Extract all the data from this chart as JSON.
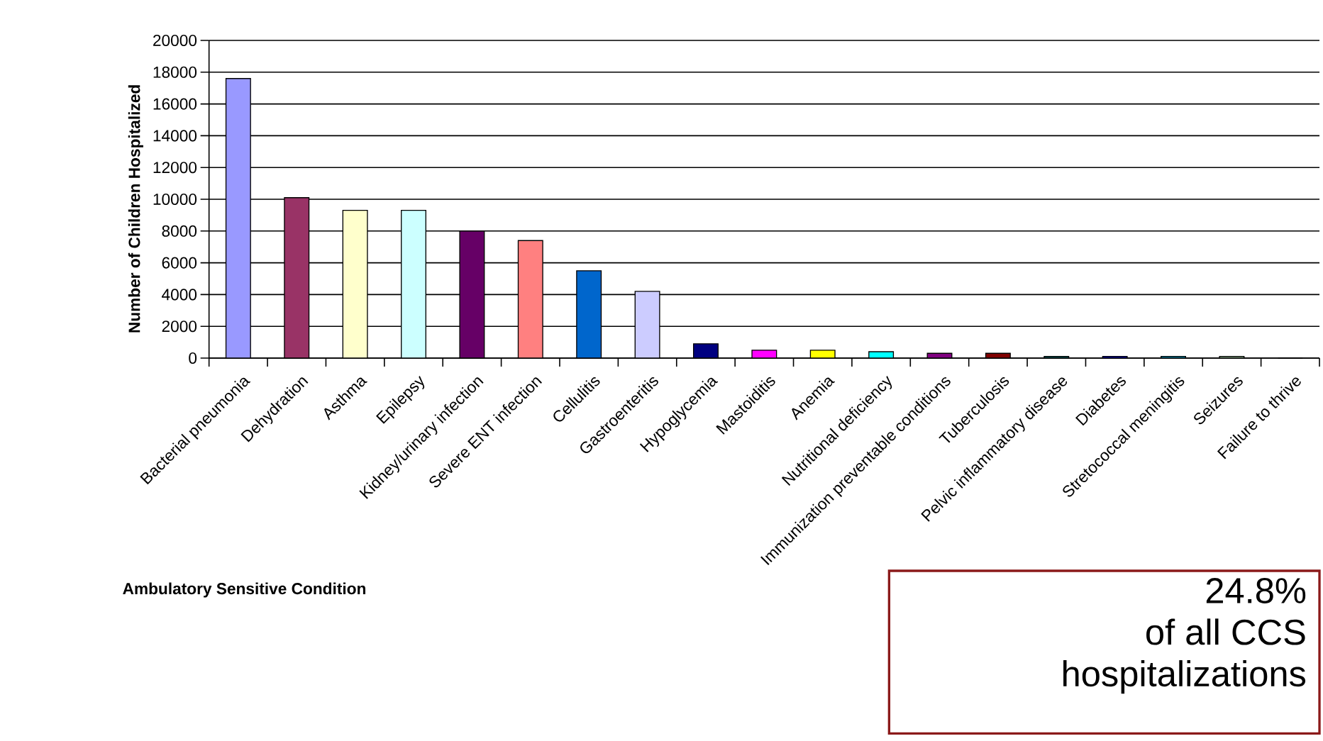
{
  "chart_data": {
    "type": "bar",
    "ylabel": "Number of Children Hospitalized",
    "xlabel": "Ambulatory Sensitive Condition",
    "categories": [
      "Bacterial pneumonia",
      "Dehydration",
      "Asthma",
      "Epilepsy",
      "Kidney/urinary infection",
      "Severe ENT infection",
      "Cellulitis",
      "Gastroenteritis",
      "Hypoglycemia",
      "Mastoiditis",
      "Anemia",
      "Nutritional deficiency",
      "Immunization preventable conditions",
      "Tuberculosis",
      "Pelvic inflammatory disease",
      "Diabetes",
      "Stretococcal meningitis",
      "Seizures",
      "Failure to thrive"
    ],
    "values": [
      17600,
      10100,
      9300,
      9300,
      8000,
      7400,
      5500,
      4200,
      900,
      500,
      500,
      400,
      300,
      300,
      100,
      100,
      100,
      100,
      0
    ],
    "colors": [
      "#9999ff",
      "#993366",
      "#ffffcc",
      "#ccffff",
      "#660066",
      "#ff8080",
      "#0066cc",
      "#ccccff",
      "#000080",
      "#ff00ff",
      "#ffff00",
      "#00ffff",
      "#800080",
      "#800000",
      "#008080",
      "#0000ff",
      "#00ccff",
      "#ccffcc",
      "#ffff99"
    ],
    "ylim": [
      0,
      20000
    ],
    "yticks": [
      0,
      2000,
      4000,
      6000,
      8000,
      10000,
      12000,
      14000,
      16000,
      18000,
      20000
    ],
    "grid": "y",
    "annotations": [
      "24.8%",
      "of all CCS",
      "hospitalizations"
    ]
  }
}
